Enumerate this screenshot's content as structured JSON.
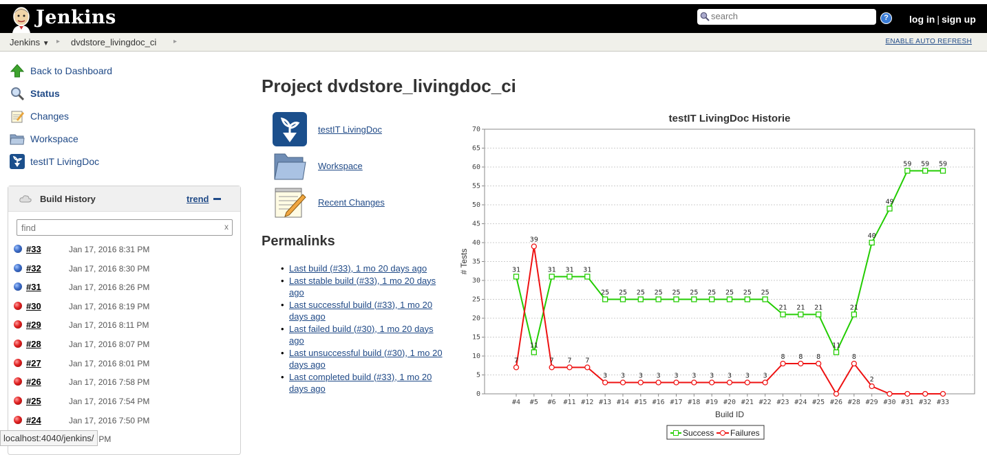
{
  "header": {
    "brand": "Jenkins",
    "search_placeholder": "search",
    "help": "?",
    "login": "log in",
    "signup": "sign up"
  },
  "breadcrumb": {
    "items": [
      "Jenkins",
      "dvdstore_livingdoc_ci"
    ],
    "auto_refresh": "ENABLE AUTO REFRESH"
  },
  "sidebar": {
    "tasks": [
      {
        "label": "Back to Dashboard",
        "icon": "up-arrow-icon"
      },
      {
        "label": "Status",
        "icon": "magnifier-icon"
      },
      {
        "label": "Changes",
        "icon": "notepad-icon"
      },
      {
        "label": "Workspace",
        "icon": "folder-icon"
      },
      {
        "label": "testIT LivingDoc",
        "icon": "livingdoc-icon"
      }
    ]
  },
  "build_history": {
    "title": "Build History",
    "trend": "trend",
    "find_placeholder": "find",
    "clear": "x",
    "builds": [
      {
        "num": "#33",
        "date": "Jan 17, 2016 8:31 PM",
        "status": "blue"
      },
      {
        "num": "#32",
        "date": "Jan 17, 2016 8:30 PM",
        "status": "blue"
      },
      {
        "num": "#31",
        "date": "Jan 17, 2016 8:26 PM",
        "status": "blue"
      },
      {
        "num": "#30",
        "date": "Jan 17, 2016 8:19 PM",
        "status": "red"
      },
      {
        "num": "#29",
        "date": "Jan 17, 2016 8:11 PM",
        "status": "red"
      },
      {
        "num": "#28",
        "date": "Jan 17, 2016 8:07 PM",
        "status": "red"
      },
      {
        "num": "#27",
        "date": "Jan 17, 2016 8:01 PM",
        "status": "red"
      },
      {
        "num": "#26",
        "date": "Jan 17, 2016 7:58 PM",
        "status": "red"
      },
      {
        "num": "#25",
        "date": "Jan 17, 2016 7:54 PM",
        "status": "red"
      },
      {
        "num": "#24",
        "date": "Jan 17, 2016 7:50 PM",
        "status": "red"
      },
      {
        "num": "",
        "date": "16 7:30 PM",
        "status": "red"
      }
    ]
  },
  "statusbar": "localhost:4040/jenkins/",
  "main": {
    "title": "Project dvdstore_livingdoc_ci",
    "links": [
      {
        "label": "testIT LivingDoc",
        "icon": "livingdoc-icon"
      },
      {
        "label": "Workspace",
        "icon": "folder-icon"
      },
      {
        "label": "Recent Changes",
        "icon": "notepad-icon"
      }
    ],
    "permalinks_title": "Permalinks",
    "permalinks": [
      "Last build (#33), 1 mo 20 days ago",
      "Last stable build (#33), 1 mo 20 days ago",
      "Last successful build (#33), 1 mo 20 days ago",
      "Last failed build (#30), 1 mo 20 days ago",
      "Last unsuccessful build (#30), 1 mo 20 days ago",
      "Last completed build (#33), 1 mo 20 days ago"
    ]
  },
  "chart_data": {
    "type": "line",
    "title": "testIT LivingDoc Historie",
    "xlabel": "Build ID",
    "ylabel": "# Tests",
    "ylim": [
      0,
      70
    ],
    "yticks": [
      0,
      5,
      10,
      15,
      20,
      25,
      30,
      35,
      40,
      45,
      50,
      55,
      60,
      65,
      70
    ],
    "grid": true,
    "legend": "bottom",
    "categories": [
      "#4",
      "#5",
      "#6",
      "#11",
      "#12",
      "#13",
      "#14",
      "#15",
      "#16",
      "#17",
      "#18",
      "#19",
      "#20",
      "#21",
      "#22",
      "#23",
      "#24",
      "#25",
      "#26",
      "#28",
      "#29",
      "#30",
      "#31",
      "#32",
      "#33"
    ],
    "series": [
      {
        "name": "Success",
        "color": "#22cc00",
        "values": [
          31,
          11,
          31,
          31,
          31,
          25,
          25,
          25,
          25,
          25,
          25,
          25,
          25,
          25,
          25,
          21,
          21,
          21,
          11,
          21,
          40,
          49,
          59,
          59,
          59
        ],
        "labels": [
          "31",
          "11",
          "31",
          "31",
          "31",
          "25",
          "25",
          "25",
          "25",
          "25",
          "25",
          "25",
          "25",
          "25",
          "25",
          "21",
          "21",
          "21",
          "11",
          "21",
          "40",
          "49",
          "59",
          "59",
          "59"
        ]
      },
      {
        "name": "Failures",
        "color": "#ee1111",
        "values": [
          7,
          39,
          7,
          7,
          7,
          3,
          3,
          3,
          3,
          3,
          3,
          3,
          3,
          3,
          3,
          8,
          8,
          8,
          0,
          8,
          2,
          0,
          0,
          0,
          0
        ],
        "labels": [
          "7",
          "39",
          "7",
          "7",
          "7",
          "3",
          "3",
          "3",
          "3",
          "3",
          "3",
          "3",
          "3",
          "3",
          "3",
          "8",
          "8",
          "8",
          "",
          "8",
          "2",
          "",
          "",
          "",
          ""
        ]
      }
    ]
  }
}
